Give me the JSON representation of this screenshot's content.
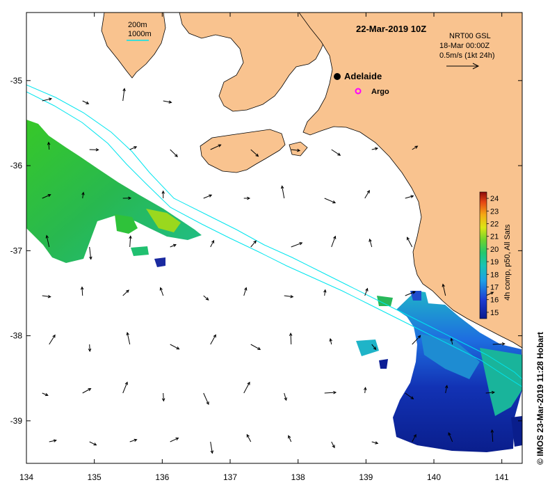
{
  "title": "22-Mar-2019 10Z",
  "depth_legend": {
    "line1": "200m",
    "line2": "1000m"
  },
  "current_legend": {
    "line1": "NRT00 GSL",
    "line2": "18-Mar 00:00Z",
    "line3": "0.5m/s (1kt 24h)"
  },
  "places": [
    {
      "name": "Adelaide",
      "lon": 138.6,
      "lat": -34.93
    }
  ],
  "argo": {
    "label": "Argo",
    "lon": 138.9,
    "lat": -35.1
  },
  "axes": {
    "x_ticks": [
      "134",
      "135",
      "136",
      "137",
      "138",
      "139",
      "140",
      "141"
    ],
    "y_ticks": [
      "-35",
      "-36",
      "-37",
      "-38",
      "-39"
    ],
    "lon_range": [
      134,
      141.3
    ],
    "lat_range": [
      -39.5,
      -34.2
    ]
  },
  "colorbar": {
    "label": "4h comp, p50, All Sats",
    "ticks": [
      "24",
      "23",
      "22",
      "21",
      "20",
      "19",
      "18",
      "17",
      "16",
      "15"
    ],
    "range": [
      14.5,
      24.5
    ]
  },
  "credit": "© IMOS 23-Mar-2019 11:28 Hobart",
  "colors": {
    "land": "#f9c38f",
    "isobath": "#00e5ee",
    "argo_marker": "#ff00ff",
    "ocean": "#ffffff"
  }
}
